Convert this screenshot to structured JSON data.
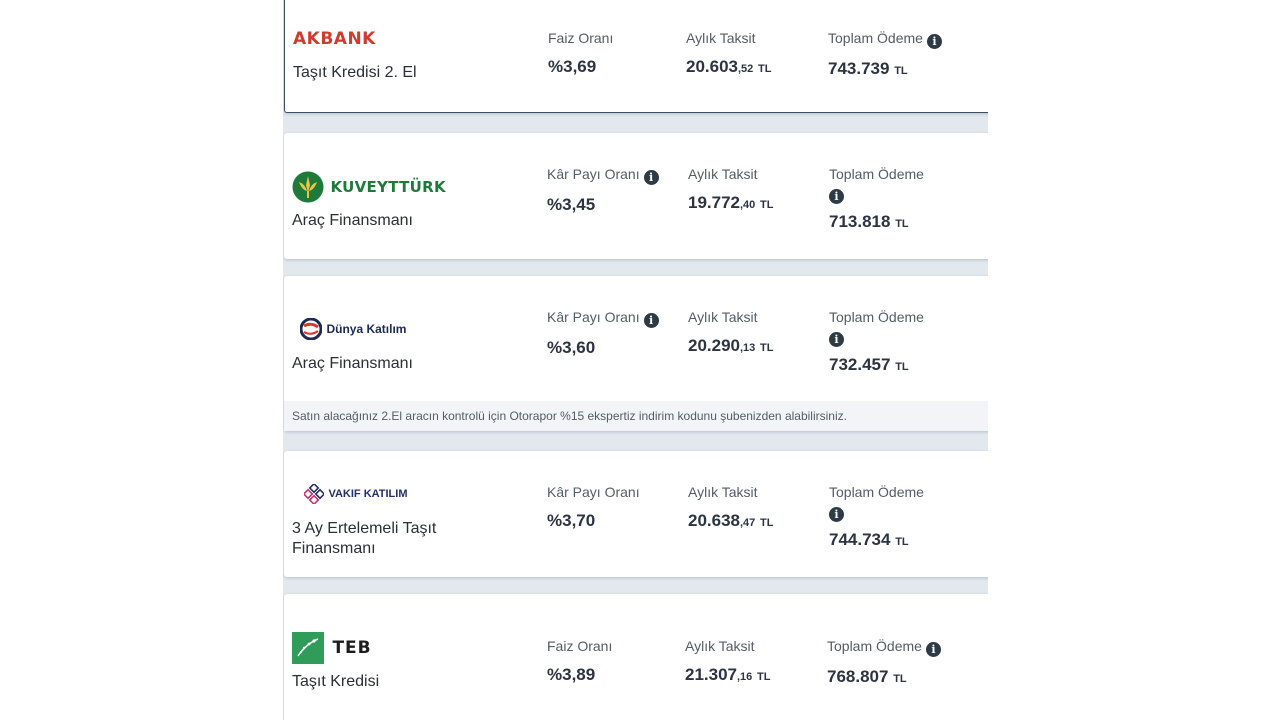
{
  "offers": [
    {
      "bank": "AKBANK",
      "product": "Taşıt Kredisi 2. El",
      "rate_label": "Faiz Oranı",
      "rate": "%3,69",
      "installment_label": "Aylık Taksit",
      "installment_main": "20.603",
      "installment_cents": ",52",
      "total_label": "Toplam Ödeme",
      "total": "743.739",
      "currency": "TL"
    },
    {
      "bank": "KUVEYTTÜRK",
      "product": "Araç Finansmanı",
      "rate_label": "Kâr Payı Oranı",
      "rate": "%3,45",
      "installment_label": "Aylık Taksit",
      "installment_main": "19.772",
      "installment_cents": ",40",
      "total_label": "Toplam Ödeme",
      "total": "713.818",
      "currency": "TL"
    },
    {
      "bank": "Dünya Katılım",
      "product": "Araç Finansmanı",
      "rate_label": "Kâr Payı Oranı",
      "rate": "%3,60",
      "installment_label": "Aylık Taksit",
      "installment_main": "20.290",
      "installment_cents": ",13",
      "total_label": "Toplam Ödeme",
      "total": "732.457",
      "currency": "TL",
      "note": "Satın alacağınız 2.El aracın kontrolü için Otorapor %15 ekspertiz indirim kodunu şubenizden alabilirsiniz."
    },
    {
      "bank": "VAKIF KATILIM",
      "product": "3 Ay Ertelemeli Taşıt Finansmanı",
      "rate_label": "Kâr Payı Oranı",
      "rate": "%3,70",
      "installment_label": "Aylık Taksit",
      "installment_main": "20.638",
      "installment_cents": ",47",
      "total_label": "Toplam Ödeme",
      "total": "744.734",
      "currency": "TL"
    },
    {
      "bank": "TEB",
      "product": "Taşıt Kredisi",
      "rate_label": "Faiz Oranı",
      "rate": "%3,89",
      "installment_label": "Aylık Taksit",
      "installment_main": "21.307",
      "installment_cents": ",16",
      "total_label": "Toplam Ödeme",
      "total": "768.807",
      "currency": "TL"
    }
  ],
  "info_glyph": "i",
  "colors": {
    "akbank": "#d13b2f",
    "kuveytturk": "#1f7a3a",
    "dunya": "#1c2a55",
    "vakif": "#22306b",
    "teb": "#2f9c5a"
  }
}
